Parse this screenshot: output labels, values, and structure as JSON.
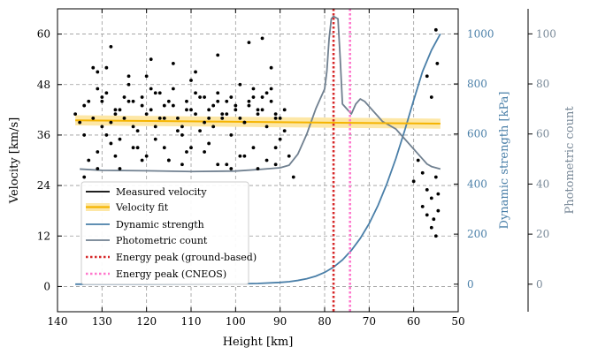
{
  "chart_data": {
    "type": "scatter",
    "xlabel": "Height [km]",
    "ylabel": "Velocity [km/s]",
    "y2label": "Dynamic strength [kPa]",
    "y3label": "Photometric count",
    "xlim": [
      140,
      50
    ],
    "ylim": [
      -6,
      66
    ],
    "y2lim": [
      -110,
      1100
    ],
    "y3lim": [
      -11,
      110
    ],
    "xticks": [
      "140",
      "130",
      "120",
      "110",
      "100",
      "90",
      "80",
      "70",
      "60",
      "50"
    ],
    "yticks": [
      "0",
      "12",
      "24",
      "36",
      "48",
      "60"
    ],
    "y2ticks": [
      "0",
      "200",
      "400",
      "600",
      "800",
      "1000"
    ],
    "y3ticks": [
      "0",
      "20",
      "40",
      "60",
      "80",
      "100"
    ],
    "grid": true,
    "legend_position": "lower-left",
    "colors": {
      "measured": "#000000",
      "fit": "#f5b400",
      "fit_band": "#fde7a6",
      "dynamic": "#4a7fa8",
      "photometric": "#708090",
      "peak_ground": "#d62728",
      "peak_cneos": "#ff77cc"
    },
    "legend": [
      "Measured velocity",
      "Velocity fit",
      "Dynamic strength",
      "Photometric count",
      "Energy peak (ground-based)",
      "Energy peak (CNEOS)"
    ],
    "velocity_fit": {
      "x": [
        136,
        54
      ],
      "y": [
        39.5,
        38.7
      ],
      "band": 1.2
    },
    "energy_peak_ground_km": 78.0,
    "energy_peak_cneos_km": 74.3,
    "dynamic_strength": {
      "x": [
        136,
        120,
        100,
        95,
        90,
        88,
        86,
        84,
        82,
        80,
        78,
        76,
        74,
        72,
        70,
        68,
        66,
        64,
        62,
        60,
        58,
        56,
        54
      ],
      "y": [
        0,
        0,
        1,
        3,
        7,
        10,
        15,
        22,
        32,
        47,
        68,
        97,
        135,
        183,
        242,
        315,
        402,
        502,
        615,
        735,
        850,
        935,
        1000
      ]
    },
    "photometric_count": {
      "x": [
        135,
        130,
        120,
        110,
        100,
        95,
        90,
        88,
        86,
        84,
        83,
        82,
        81,
        80,
        79.5,
        79,
        78.5,
        78,
        77,
        76.5,
        76,
        75,
        74,
        73,
        72,
        71,
        70,
        69,
        68,
        67,
        66,
        65,
        64,
        63,
        62,
        61,
        60,
        59,
        58,
        57,
        56,
        55,
        54
      ],
      "y": [
        46,
        45.5,
        45.3,
        45,
        45.2,
        45.8,
        46.5,
        47.5,
        52,
        60,
        65,
        70,
        74,
        78,
        85,
        98,
        106,
        107,
        106,
        90,
        72,
        70,
        68,
        72,
        74,
        73,
        71,
        69,
        67,
        65,
        64,
        63,
        62,
        60,
        58,
        56,
        54,
        52,
        50,
        48,
        47,
        46.5,
        46
      ]
    },
    "measured_velocity": {
      "x": [
        136,
        134,
        133,
        132,
        131,
        130,
        130,
        129,
        128,
        127,
        126,
        125,
        124,
        123,
        122,
        121,
        120,
        119,
        118,
        117,
        116,
        115,
        114,
        113,
        112,
        111,
        110,
        109,
        108,
        107,
        106,
        105,
        104,
        103,
        102,
        101,
        100,
        99,
        98,
        97,
        96,
        95,
        94,
        93,
        92,
        91,
        90,
        89,
        135,
        133,
        131,
        129,
        127,
        125,
        123,
        121,
        119,
        117,
        115,
        113,
        111,
        109,
        107,
        105,
        103,
        101,
        99,
        97,
        95,
        93,
        91,
        89,
        134,
        132,
        130,
        128,
        126,
        124,
        122,
        120,
        118,
        116,
        114,
        112,
        110,
        108,
        106,
        104,
        102,
        100,
        98,
        96,
        94,
        92,
        90,
        131,
        128,
        126,
        123,
        120,
        118,
        115,
        112,
        110,
        107,
        104,
        101,
        99,
        96,
        93,
        91,
        129,
        124,
        119,
        114,
        109,
        104,
        97,
        94,
        92,
        134,
        131,
        127,
        121,
        116,
        111,
        106,
        102,
        98,
        95,
        91,
        88,
        87,
        60,
        59,
        58,
        58,
        57,
        57,
        56,
        56,
        55.5,
        55,
        55,
        54.5,
        54.5,
        57,
        56,
        55,
        54.7
      ],
      "y": [
        41,
        36,
        30,
        52,
        51,
        44,
        38,
        46,
        57,
        42,
        35,
        40,
        48,
        44,
        33,
        45,
        50,
        42,
        38,
        46,
        43,
        30,
        47,
        40,
        36,
        44,
        49,
        41,
        37,
        45,
        42,
        38,
        46,
        40,
        44,
        36,
        42,
        48,
        39,
        43,
        47,
        41,
        45,
        38,
        44,
        40,
        35,
        42,
        39,
        44,
        47,
        36,
        41,
        45,
        38,
        43,
        47,
        40,
        44,
        37,
        42,
        46,
        39,
        43,
        41,
        45,
        40,
        44,
        42,
        46,
        41,
        37,
        43,
        40,
        45,
        39,
        42,
        44,
        37,
        41,
        46,
        40,
        43,
        38,
        42,
        45,
        40,
        44,
        41,
        43,
        39,
        45,
        42,
        47,
        40,
        32,
        34,
        28,
        33,
        31,
        35,
        30,
        29,
        33,
        32,
        29,
        28,
        31,
        33,
        30,
        29,
        52,
        50,
        54,
        53,
        51,
        55,
        58,
        59,
        52,
        26,
        28,
        31,
        30,
        33,
        32,
        34,
        29,
        31,
        28,
        33,
        31,
        26,
        25,
        30,
        27,
        19,
        23,
        17,
        14,
        21,
        16,
        26,
        12,
        22,
        18,
        50,
        45,
        61,
        53
      ]
    }
  }
}
